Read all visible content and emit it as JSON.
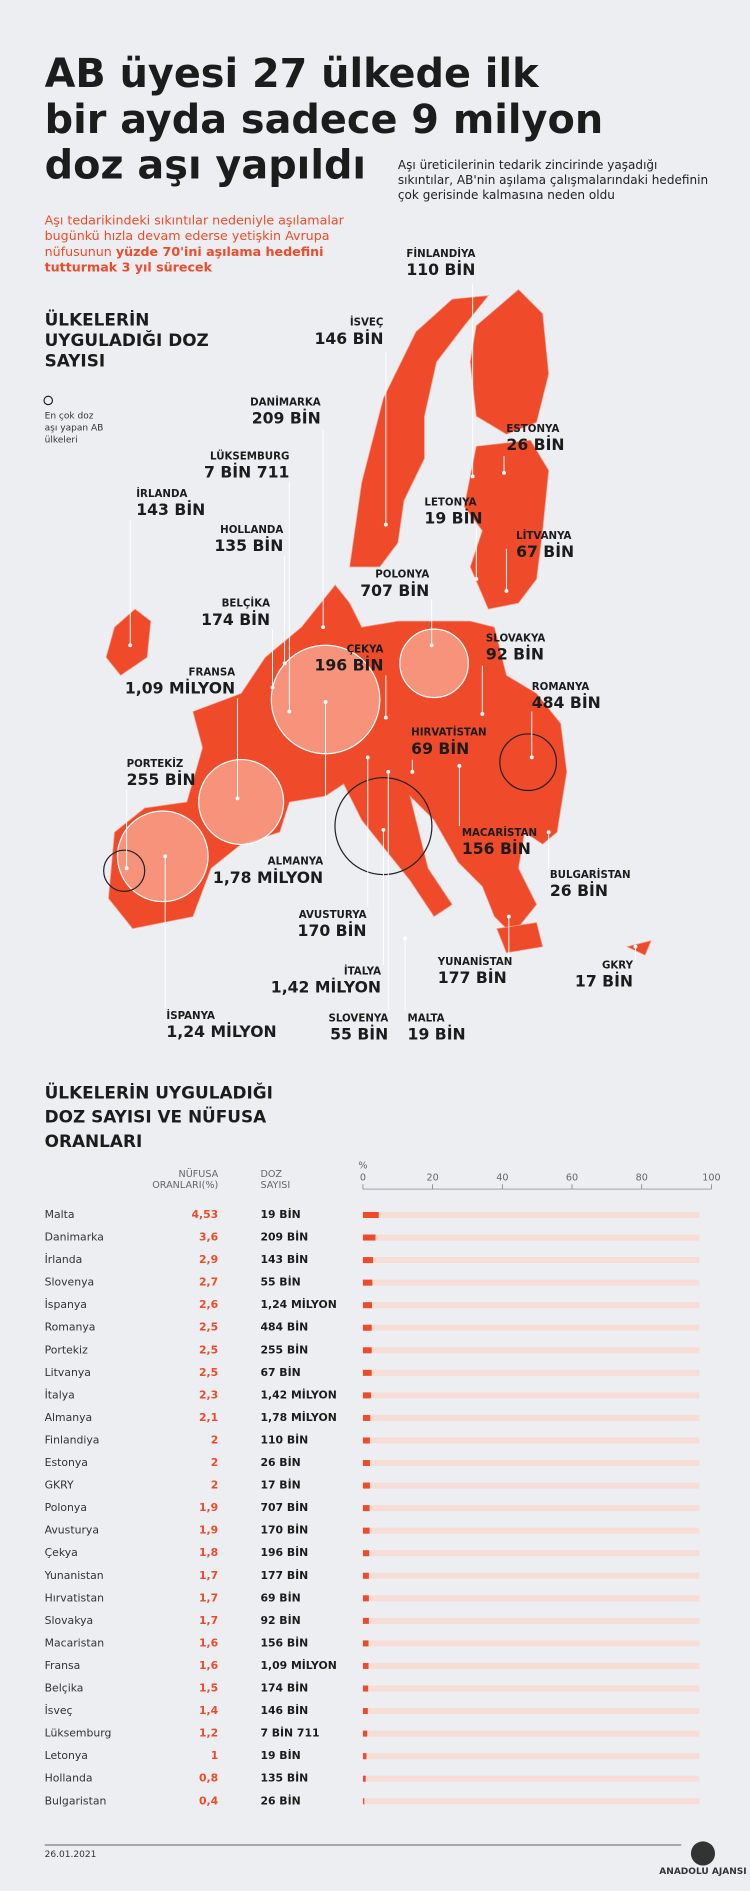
{
  "header": {
    "title_lines": [
      "AB üyesi 27 ülkede ilk",
      "bir ayda sadece 9 milyon",
      "doz aşı yapıldı"
    ],
    "subtitle_lines": [
      "Aşı üreticilerinin tedarik zincirinde yaşadığı",
      "sıkıntılar, AB'nin aşılama çalışmalarındaki hedefinin",
      "çok gerisinde kalmasına neden oldu"
    ],
    "intro_lines": [
      "Aşı tedarikindeki sıkıntılar nedeniyle aşılamalar",
      "bugünkü hızla devam ederse yetişkin Avrupa"
    ],
    "intro_line3": "nüfusunun ",
    "intro_bold": [
      "yüzde 70'ini aşılama hedefini",
      "tutturmak 3 yıl sürecek"
    ]
  },
  "map": {
    "title_lines": [
      "ÜLKELERİN",
      "UYGULADIĞI DOZ",
      "SAYISI"
    ],
    "legend_lines": [
      "En çok doz",
      "aşı yapan AB",
      "ülkeleri"
    ],
    "labels": [
      {
        "name": "FİNLANDİYA",
        "value": "110 BİN"
      },
      {
        "name": "İSVEÇ",
        "value": "146 BİN"
      },
      {
        "name": "DANİMARKA",
        "value": "209 BİN"
      },
      {
        "name": "LÜKSEMBURG",
        "value": "7 BİN 711"
      },
      {
        "name": "İRLANDA",
        "value": "143 BİN"
      },
      {
        "name": "HOLLANDA",
        "value": "135 BİN"
      },
      {
        "name": "ESTONYA",
        "value": "26 BİN"
      },
      {
        "name": "LETONYA",
        "value": "19 BİN"
      },
      {
        "name": "LİTVANYA",
        "value": "67 BİN"
      },
      {
        "name": "POLONYA",
        "value": "707 BİN"
      },
      {
        "name": "BELÇİKA",
        "value": "174 BİN"
      },
      {
        "name": "SLOVAKYA",
        "value": "92 BİN"
      },
      {
        "name": "ÇEKYA",
        "value": "196 BİN"
      },
      {
        "name": "FRANSA",
        "value": "1,09 MİLYON"
      },
      {
        "name": "ROMANYA",
        "value": "484 BİN"
      },
      {
        "name": "HIRVATİSTAN",
        "value": "69 BİN"
      },
      {
        "name": "PORTEKİZ",
        "value": "255 BİN"
      },
      {
        "name": "MACARİSTAN",
        "value": "156 BİN"
      },
      {
        "name": "ALMANYA",
        "value": "1,78 MİLYON"
      },
      {
        "name": "BULGARİSTAN",
        "value": "26 BİN"
      },
      {
        "name": "AVUSTURYA",
        "value": "170 BİN"
      },
      {
        "name": "İSPANYA",
        "value": "1,24 MİLYON"
      },
      {
        "name": "YUNANİSTAN",
        "value": "177 BİN"
      },
      {
        "name": "İTALYA",
        "value": "1,42 MİLYON"
      },
      {
        "name": "SLOVENYA",
        "value": "55 BİN"
      },
      {
        "name": "MALTA",
        "value": "19 BİN"
      },
      {
        "name": "GKRY",
        "value": "17 BİN"
      }
    ],
    "bubbles": [
      {
        "doses": 1780000,
        "filled": true
      },
      {
        "doses": 1090000,
        "filled": true
      },
      {
        "doses": 1240000,
        "filled": true
      },
      {
        "doses": 1420000,
        "filled": false
      },
      {
        "doses": 707000,
        "filled": true
      },
      {
        "doses": 484000,
        "filled": false
      },
      {
        "doses": 255000,
        "filled": false
      }
    ]
  },
  "table": {
    "title_lines": [
      "ÜLKELERİN UYGULADIĞI",
      "DOZ SAYISI VE NÜFUSA",
      "ORANLARI"
    ],
    "col_pct": [
      "NÜFUSA",
      "ORANLARI(%)"
    ],
    "col_doses": [
      "DOZ",
      "SAYISI"
    ],
    "axis_unit": "%",
    "xlim": [
      0,
      100
    ],
    "xticks": [
      0,
      20,
      40,
      60,
      80,
      100
    ],
    "rows": [
      {
        "country": "Malta",
        "pct": 4.53,
        "pct_label": "4,53",
        "doses": "19 BİN"
      },
      {
        "country": "Danimarka",
        "pct": 3.6,
        "pct_label": "3,6",
        "doses": "209 BİN"
      },
      {
        "country": "İrlanda",
        "pct": 2.9,
        "pct_label": "2,9",
        "doses": "143 BİN"
      },
      {
        "country": "Slovenya",
        "pct": 2.7,
        "pct_label": "2,7",
        "doses": "55 BİN"
      },
      {
        "country": "İspanya",
        "pct": 2.6,
        "pct_label": "2,6",
        "doses": "1,24 MİLYON"
      },
      {
        "country": "Romanya",
        "pct": 2.5,
        "pct_label": "2,5",
        "doses": "484 BİN"
      },
      {
        "country": "Portekiz",
        "pct": 2.5,
        "pct_label": "2,5",
        "doses": "255 BİN"
      },
      {
        "country": "Litvanya",
        "pct": 2.5,
        "pct_label": "2,5",
        "doses": "67 BİN"
      },
      {
        "country": "İtalya",
        "pct": 2.3,
        "pct_label": "2,3",
        "doses": "1,42 MİLYON"
      },
      {
        "country": "Almanya",
        "pct": 2.1,
        "pct_label": "2,1",
        "doses": "1,78 MİLYON"
      },
      {
        "country": "Finlandiya",
        "pct": 2,
        "pct_label": "2",
        "doses": "110 BİN"
      },
      {
        "country": "Estonya",
        "pct": 2,
        "pct_label": "2",
        "doses": "26 BİN"
      },
      {
        "country": "GKRY",
        "pct": 2,
        "pct_label": "2",
        "doses": "17 BİN"
      },
      {
        "country": "Polonya",
        "pct": 1.9,
        "pct_label": "1,9",
        "doses": "707 BİN"
      },
      {
        "country": "Avusturya",
        "pct": 1.9,
        "pct_label": "1,9",
        "doses": "170 BİN"
      },
      {
        "country": "Çekya",
        "pct": 1.8,
        "pct_label": "1,8",
        "doses": "196 BİN"
      },
      {
        "country": "Yunanistan",
        "pct": 1.7,
        "pct_label": "1,7",
        "doses": "177 BİN"
      },
      {
        "country": "Hırvatistan",
        "pct": 1.7,
        "pct_label": "1,7",
        "doses": "69 BİN"
      },
      {
        "country": "Slovakya",
        "pct": 1.7,
        "pct_label": "1,7",
        "doses": "92 BİN"
      },
      {
        "country": "Macaristan",
        "pct": 1.6,
        "pct_label": "1,6",
        "doses": "156 BİN"
      },
      {
        "country": "Fransa",
        "pct": 1.6,
        "pct_label": "1,6",
        "doses": "1,09 MİLYON"
      },
      {
        "country": "Belçika",
        "pct": 1.5,
        "pct_label": "1,5",
        "doses": "174 BİN"
      },
      {
        "country": "İsveç",
        "pct": 1.4,
        "pct_label": "1,4",
        "doses": "146 BİN"
      },
      {
        "country": "Lüksemburg",
        "pct": 1.2,
        "pct_label": "1,2",
        "doses": "7 BİN 711"
      },
      {
        "country": "Letonya",
        "pct": 1,
        "pct_label": "1",
        "doses": "19 BİN"
      },
      {
        "country": "Hollanda",
        "pct": 0.8,
        "pct_label": "0,8",
        "doses": "135 BİN"
      },
      {
        "country": "Bulgaristan",
        "pct": 0.4,
        "pct_label": "0,4",
        "doses": "26 BİN"
      }
    ]
  },
  "footer": {
    "date": "26.01.2021",
    "agency": "ANADOLU AJANSI"
  }
}
